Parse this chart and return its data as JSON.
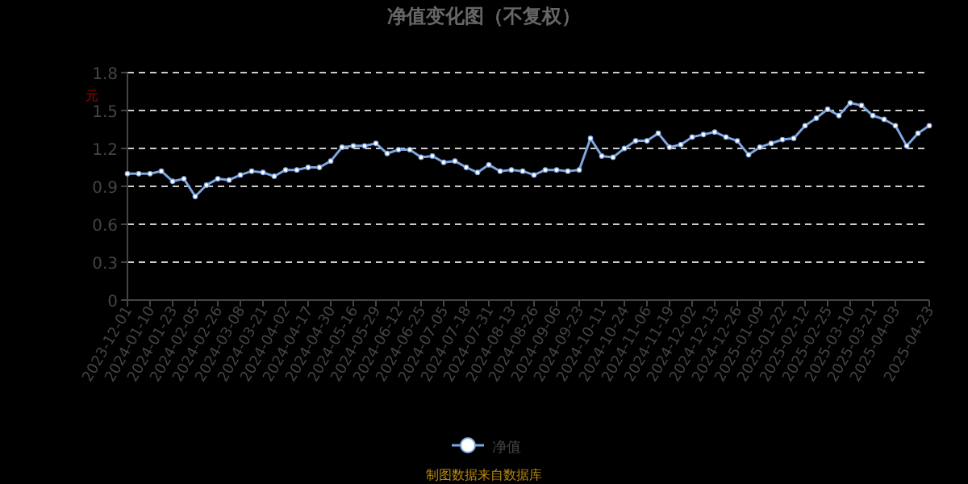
{
  "chart_data": {
    "type": "line",
    "title": "净值变化图（不复权）",
    "ylabel": "元",
    "categories": [
      "2023-12-01",
      null,
      "2024-01-10",
      null,
      "2024-01-23",
      null,
      "2024-02-05",
      null,
      "2024-02-26",
      null,
      "2024-03-08",
      null,
      "2024-03-21",
      null,
      "2024-04-02",
      null,
      "2024-04-17",
      null,
      "2024-04-30",
      null,
      "2024-05-16",
      null,
      "2024-05-29",
      null,
      "2024-06-12",
      null,
      "2024-06-25",
      null,
      "2024-07-05",
      null,
      "2024-07-18",
      null,
      "2024-07-31",
      null,
      "2024-08-13",
      null,
      "2024-08-26",
      null,
      "2024-09-06",
      null,
      "2024-09-23",
      null,
      "2024-10-11",
      null,
      "2024-10-24",
      null,
      "2024-11-06",
      null,
      "2024-11-19",
      null,
      "2024-12-02",
      null,
      "2024-12-13",
      null,
      "2024-12-26",
      null,
      "2025-01-09",
      null,
      "2025-01-22",
      null,
      "2025-02-12",
      null,
      "2025-02-25",
      null,
      "2025-03-10",
      null,
      "2025-03-21",
      null,
      "2025-04-03",
      null,
      null,
      "2025-04-23"
    ],
    "series": [
      {
        "name": "净值",
        "color": "#7ea6e0",
        "values": [
          1.0,
          1.0,
          1.0,
          1.02,
          0.94,
          0.96,
          0.82,
          0.91,
          0.96,
          0.95,
          0.99,
          1.02,
          1.01,
          0.98,
          1.03,
          1.03,
          1.05,
          1.05,
          1.1,
          1.21,
          1.22,
          1.22,
          1.24,
          1.16,
          1.19,
          1.19,
          1.13,
          1.14,
          1.09,
          1.1,
          1.05,
          1.01,
          1.07,
          1.02,
          1.03,
          1.02,
          0.99,
          1.03,
          1.03,
          1.02,
          1.03,
          1.28,
          1.14,
          1.13,
          1.2,
          1.26,
          1.26,
          1.32,
          1.21,
          1.23,
          1.29,
          1.31,
          1.33,
          1.29,
          1.26,
          1.15,
          1.21,
          1.24,
          1.27,
          1.28,
          1.38,
          1.44,
          1.51,
          1.46,
          1.56,
          1.54,
          1.46,
          1.43,
          1.38,
          1.22,
          1.32,
          1.38
        ]
      }
    ],
    "ylim": [
      0,
      1.8
    ],
    "yticks": [
      0,
      0.3,
      0.6,
      0.9,
      1.2,
      1.5,
      1.8
    ],
    "grid": "y",
    "legend": "bottom",
    "marker": "circle",
    "line_style": "solid",
    "annotations": [
      "制图数据来自数据库"
    ]
  }
}
